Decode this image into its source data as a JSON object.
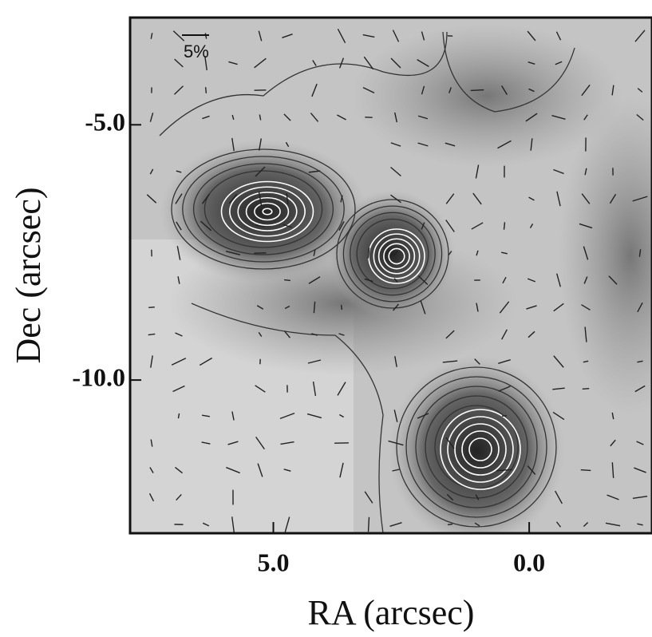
{
  "chart_data": {
    "type": "image",
    "xlabel": "RA (arcsec)",
    "ylabel": "Dec (arcsec)",
    "annotation": "5%",
    "xlim": [
      7.8,
      -2.4
    ],
    "ylim": [
      -13.0,
      -2.9
    ],
    "xticks": [
      {
        "value": 5,
        "label": "5.0"
      },
      {
        "value": 0,
        "label": "0.0"
      }
    ],
    "yticks": [
      {
        "value": -5,
        "label": "-5.0"
      },
      {
        "value": -10,
        "label": "-10.0"
      }
    ]
  }
}
